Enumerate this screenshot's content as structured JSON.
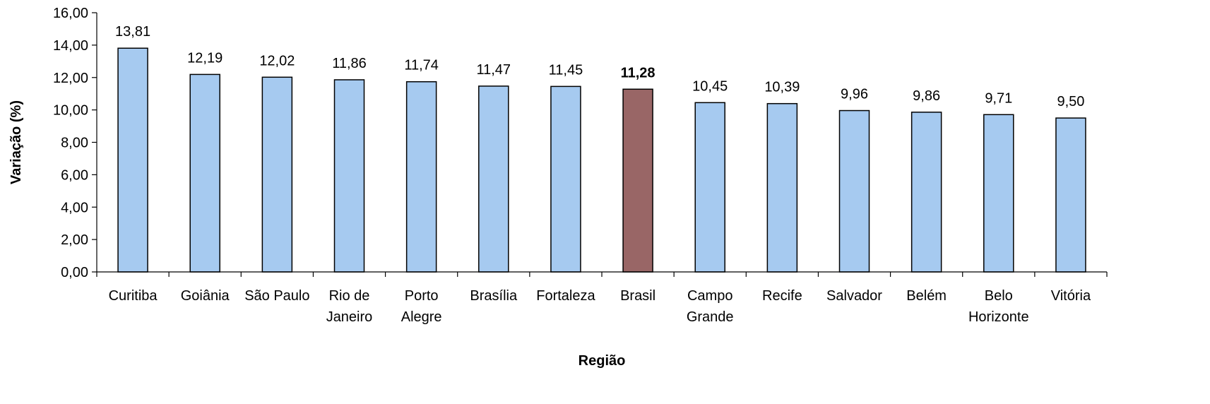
{
  "chart_data": {
    "type": "bar",
    "xlabel": "Região",
    "ylabel": "Variação (%)",
    "ylim": [
      0,
      16
    ],
    "yticks": [
      "0,00",
      "2,00",
      "4,00",
      "6,00",
      "8,00",
      "10,00",
      "12,00",
      "14,00",
      "16,00"
    ],
    "grid": false,
    "legend": "none",
    "bar_color": "#A6CAF0",
    "highlight_color": "#996666",
    "highlight_category": "Brasil",
    "categories": [
      [
        "Curitiba"
      ],
      [
        "Goiânia"
      ],
      [
        "São Paulo"
      ],
      [
        "Rio de",
        "Janeiro"
      ],
      [
        "Porto",
        "Alegre"
      ],
      [
        "Brasília"
      ],
      [
        "Fortaleza"
      ],
      [
        "Brasil"
      ],
      [
        "Campo",
        "Grande"
      ],
      [
        "Recife"
      ],
      [
        "Salvador"
      ],
      [
        "Belém"
      ],
      [
        "Belo",
        "Horizonte"
      ],
      [
        "Vitória"
      ]
    ],
    "values": [
      13.81,
      12.19,
      12.02,
      11.86,
      11.74,
      11.47,
      11.45,
      11.28,
      10.45,
      10.39,
      9.96,
      9.86,
      9.71,
      9.5
    ],
    "value_labels": [
      "13,81",
      "12,19",
      "12,02",
      "11,86",
      "11,74",
      "11,47",
      "11,45",
      "11,28",
      "10,45",
      "10,39",
      "9,96",
      "9,86",
      "9,71",
      "9,50"
    ]
  }
}
